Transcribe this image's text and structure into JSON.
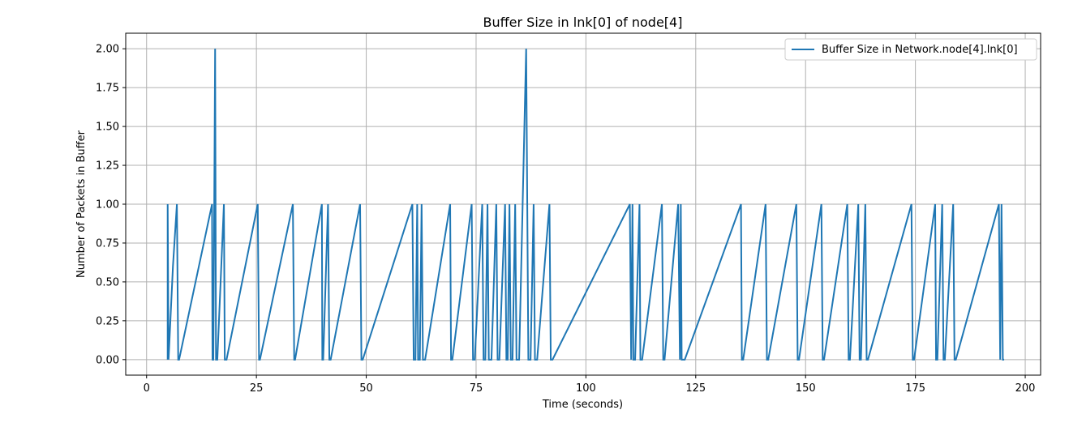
{
  "chart_data": {
    "type": "line",
    "title": "Buffer Size in lnk[0] of node[4]",
    "xlabel": "Time (seconds)",
    "ylabel": "Number of Packets in Buffer",
    "xlim": [
      -4.75,
      203.5
    ],
    "ylim": [
      -0.1,
      2.1
    ],
    "grid": true,
    "legend_position": "top-right",
    "x_ticks": [
      0,
      25,
      50,
      75,
      100,
      125,
      150,
      175,
      200
    ],
    "y_ticks": [
      0.0,
      0.25,
      0.5,
      0.75,
      1.0,
      1.25,
      1.5,
      1.75,
      2.0
    ],
    "x_tick_labels": [
      "0",
      "25",
      "50",
      "75",
      "100",
      "125",
      "150",
      "175",
      "200"
    ],
    "y_tick_labels": [
      "0.00",
      "0.25",
      "0.50",
      "0.75",
      "1.00",
      "1.25",
      "1.50",
      "1.75",
      "2.00"
    ],
    "series": [
      {
        "name": "Buffer Size in Network.node[4].lnk[0]",
        "color": "#1f77b4",
        "x": [
          4.8,
          4.8,
          5.0,
          6.0,
          6.9,
          7.2,
          7.4,
          14.9,
          15.0,
          15.2,
          15.6,
          15.8,
          16.1,
          17.6,
          17.8,
          18.2,
          25.3,
          25.6,
          25.8,
          33.3,
          33.6,
          33.8,
          39.9,
          40.0,
          40.2,
          41.3,
          41.6,
          41.9,
          48.6,
          48.9,
          49.2,
          60.5,
          60.8,
          61.2,
          61.6,
          61.8,
          62.2,
          62.6,
          62.9,
          63.4,
          69.1,
          69.3,
          69.6,
          74.0,
          74.3,
          74.7,
          76.4,
          76.7,
          77.1,
          77.6,
          77.9,
          78.5,
          79.6,
          79.9,
          80.3,
          81.6,
          81.9,
          82.2,
          82.6,
          82.9,
          83.3,
          83.9,
          84.2,
          84.8,
          86.4,
          86.9,
          87.4,
          88.1,
          88.4,
          88.9,
          91.7,
          92.0,
          92.4,
          110.0,
          110.3,
          110.6,
          110.8,
          111.2,
          112.2,
          112.4,
          112.8,
          117.3,
          117.6,
          117.9,
          121.0,
          121.4,
          121.6,
          121.8,
          122.1,
          122.5,
          135.3,
          135.5,
          135.8,
          140.9,
          141.2,
          141.5,
          147.9,
          148.2,
          148.5,
          153.6,
          153.9,
          154.2,
          159.5,
          159.8,
          160.1,
          162.0,
          162.3,
          162.6,
          163.6,
          163.9,
          164.2,
          174.1,
          174.4,
          174.7,
          179.5,
          179.7,
          180.0,
          181.1,
          181.4,
          181.7,
          183.6,
          183.9,
          184.2,
          194.0,
          194.3,
          194.6,
          194.9,
          195.2
        ],
        "y": [
          0,
          1,
          0,
          0.6,
          1,
          0,
          0,
          1,
          0,
          0,
          2,
          0,
          0,
          1,
          0,
          0,
          1,
          0,
          0,
          1,
          0,
          0,
          1,
          0,
          0,
          1,
          0,
          0,
          1,
          0,
          0,
          1,
          0,
          0,
          1,
          0,
          0,
          1,
          0,
          0,
          1,
          0,
          0,
          1,
          0,
          0,
          1,
          0,
          0,
          1,
          0,
          0,
          1,
          0,
          0,
          1,
          0,
          0,
          1,
          0,
          0,
          1,
          0,
          0,
          2,
          0,
          0,
          1,
          0,
          0,
          1,
          0,
          0,
          1,
          0,
          1,
          0,
          0,
          1,
          0,
          0,
          1,
          0,
          0,
          1,
          0,
          1,
          0,
          0,
          0,
          1,
          0,
          0,
          1,
          0,
          0,
          1,
          0,
          0,
          1,
          0,
          0,
          1,
          0,
          0,
          1,
          0,
          0,
          1,
          0,
          0,
          1,
          0,
          0,
          1,
          0,
          0,
          1,
          0,
          0,
          1,
          0,
          0,
          1,
          0,
          1,
          0,
          0
        ]
      }
    ]
  }
}
